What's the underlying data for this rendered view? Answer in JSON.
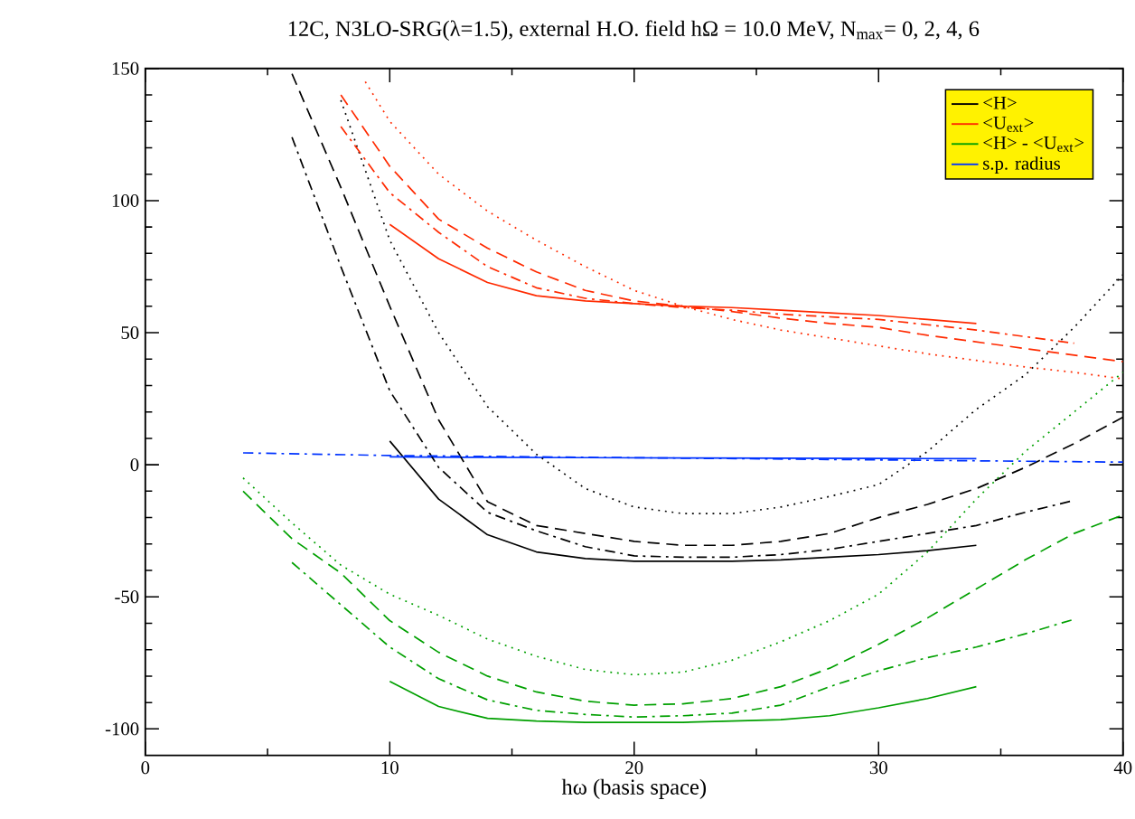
{
  "chart_data": {
    "type": "line",
    "title": "12C, N3LO-SRG(λ=1.5), external H.O. field hΩ = 10.0 MeV, N$_{max}$= 0, 2, 4, 6",
    "xlabel": "hω (basis space)",
    "xlim": [
      0,
      40
    ],
    "ylim": [
      -110,
      150
    ],
    "xticks": [
      0,
      10,
      20,
      30,
      40
    ],
    "yticks": [
      -100,
      -50,
      0,
      50,
      100,
      150
    ],
    "grid": false,
    "legend": "top right",
    "series": [
      {
        "name": "<H>",
        "color": "#000000",
        "line_style": "solid",
        "x": [
          10,
          12,
          14,
          16,
          18,
          20,
          22,
          24,
          26,
          28,
          30,
          32,
          34
        ],
        "values": [
          9,
          -13,
          -26.5,
          -33,
          -35.5,
          -36.5,
          -36.5,
          -36.5,
          -36,
          -35,
          -34,
          -32.5,
          -30.5
        ]
      },
      {
        "name": "<U$_{ext}$>",
        "color": "#ff2a00",
        "line_style": "solid",
        "x": [
          10,
          12,
          14,
          16,
          18,
          20,
          22,
          24,
          26,
          28,
          30,
          32,
          34
        ],
        "values": [
          91,
          78,
          69,
          64,
          62,
          61,
          60,
          59.5,
          58.5,
          57.5,
          56.5,
          55,
          53.5
        ]
      },
      {
        "name": "<H> - <U$_{ext}$>",
        "color": "#00a000",
        "line_style": "solid",
        "x": [
          10,
          12,
          14,
          16,
          18,
          20,
          22,
          24,
          26,
          28,
          30,
          32,
          34
        ],
        "values": [
          -82,
          -91.5,
          -96,
          -97,
          -97.5,
          -97.5,
          -97.5,
          -97,
          -96.5,
          -95,
          -92,
          -88.5,
          -84
        ]
      },
      {
        "name": "s.p. radius",
        "color": "#0033ff",
        "line_style": "solid",
        "x": [
          10,
          14,
          18,
          22,
          26,
          30,
          34
        ],
        "values": [
          3,
          2.8,
          2.7,
          2.6,
          2.5,
          2.4,
          2.3
        ]
      },
      {
        "color": "#000000",
        "line_style": "dashed",
        "x": [
          6,
          8,
          10,
          12,
          14,
          16,
          18,
          20,
          22,
          24,
          26,
          28,
          30,
          32,
          34,
          36,
          38,
          40
        ],
        "values": [
          148,
          105,
          60,
          17,
          -14,
          -23,
          -26,
          -29,
          -30.5,
          -30.5,
          -29,
          -26,
          -20,
          -15,
          -9,
          -1,
          8,
          18
        ]
      },
      {
        "color": "#000000",
        "line_style": "dashdot",
        "x": [
          6,
          8,
          10,
          12,
          14,
          16,
          18,
          20,
          22,
          24,
          26,
          28,
          30,
          32,
          34,
          36,
          38
        ],
        "values": [
          124,
          75,
          28,
          -1,
          -18,
          -25,
          -31,
          -34.5,
          -35,
          -35,
          -34,
          -32,
          -29,
          -26,
          -23,
          -18,
          -13.5
        ]
      },
      {
        "color": "#000000",
        "line_style": "dotted",
        "x": [
          8,
          10,
          12,
          14,
          16,
          18,
          20,
          22,
          24,
          26,
          28,
          30,
          32,
          34,
          36,
          38,
          40
        ],
        "values": [
          138,
          85,
          50,
          22,
          4,
          -9,
          -16,
          -18.5,
          -18.5,
          -16,
          -12,
          -7.5,
          5,
          21,
          34,
          52,
          72
        ]
      },
      {
        "color": "#ff2a00",
        "line_style": "dashed",
        "x": [
          8,
          10,
          12,
          14,
          16,
          18,
          20,
          22,
          24,
          26,
          28,
          30,
          32,
          34,
          36,
          38,
          40
        ],
        "values": [
          140,
          113,
          93,
          82,
          73,
          66,
          62,
          60,
          58,
          55.5,
          53.5,
          52,
          49,
          46.5,
          44,
          41.5,
          39
        ]
      },
      {
        "color": "#ff2a00",
        "line_style": "dashdot",
        "x": [
          8,
          10,
          12,
          14,
          16,
          18,
          20,
          22,
          24,
          26,
          28,
          30,
          32,
          34,
          36,
          38
        ],
        "values": [
          128,
          103,
          88,
          75,
          67,
          63,
          61,
          59.5,
          58.5,
          57,
          56,
          55,
          53,
          51,
          48.5,
          46
        ]
      },
      {
        "color": "#ff2a00",
        "line_style": "dotted",
        "x": [
          9,
          10,
          12,
          14,
          16,
          18,
          20,
          22,
          24,
          26,
          28,
          30,
          32,
          34,
          36,
          38,
          40
        ],
        "values": [
          145,
          130,
          110,
          96,
          85,
          75,
          66,
          60,
          55,
          51,
          48,
          45,
          42,
          39.5,
          37,
          35,
          32.5
        ]
      },
      {
        "color": "#00a000",
        "line_style": "dashed",
        "x": [
          4,
          6,
          8,
          10,
          12,
          14,
          16,
          18,
          20,
          22,
          24,
          26,
          28,
          30,
          32,
          34,
          36,
          38,
          40
        ],
        "values": [
          -10,
          -28,
          -41,
          -59,
          -71,
          -80,
          -86,
          -89.5,
          -91,
          -90.5,
          -88.5,
          -84,
          -77,
          -68,
          -58,
          -47,
          -36,
          -26,
          -19
        ]
      },
      {
        "color": "#00a000",
        "line_style": "dashdot",
        "x": [
          6,
          8,
          10,
          12,
          14,
          16,
          18,
          20,
          22,
          24,
          26,
          28,
          30,
          32,
          34,
          36,
          38
        ],
        "values": [
          -37,
          -53,
          -69,
          -81,
          -89,
          -93,
          -94.5,
          -95.5,
          -95,
          -94,
          -91,
          -84,
          -78,
          -73,
          -69,
          -64,
          -58.5
        ]
      },
      {
        "color": "#00a000",
        "line_style": "dotted",
        "x": [
          4,
          6,
          8,
          10,
          12,
          14,
          16,
          18,
          20,
          22,
          24,
          26,
          28,
          30,
          32,
          34,
          36,
          38,
          40
        ],
        "values": [
          -5,
          -22,
          -38,
          -49,
          -57,
          -66,
          -72.5,
          -77.5,
          -79.5,
          -78.5,
          -74,
          -67,
          -59,
          -49,
          -33,
          -13,
          5,
          20,
          35
        ]
      },
      {
        "color": "#0033ff",
        "line_style": "dashdot",
        "x": [
          4,
          10,
          16,
          22,
          28,
          34,
          40
        ],
        "values": [
          4.5,
          3.5,
          3,
          2.5,
          2,
          1.5,
          1
        ]
      }
    ]
  }
}
